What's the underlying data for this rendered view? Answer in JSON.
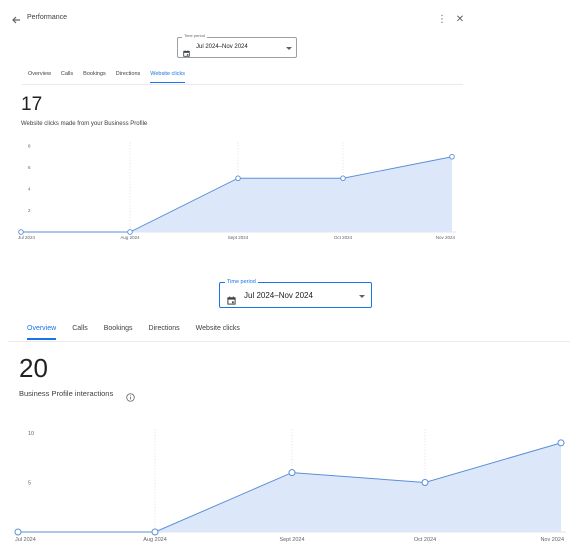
{
  "panel1": {
    "header": {
      "title": "Performance"
    },
    "time_period": {
      "label": "Time period",
      "value": "Jul 2024–Nov 2024"
    },
    "tabs": [
      {
        "label": "Overview",
        "active": false
      },
      {
        "label": "Calls",
        "active": false
      },
      {
        "label": "Bookings",
        "active": false
      },
      {
        "label": "Directions",
        "active": false
      },
      {
        "label": "Website clicks",
        "active": true
      }
    ],
    "metric": {
      "value": "17",
      "label": "Website clicks made from your Business Profile"
    }
  },
  "panel2": {
    "time_period": {
      "label": "Time period",
      "value": "Jul 2024–Nov 2024"
    },
    "tabs": [
      {
        "label": "Overview",
        "active": true
      },
      {
        "label": "Calls",
        "active": false
      },
      {
        "label": "Bookings",
        "active": false
      },
      {
        "label": "Directions",
        "active": false
      },
      {
        "label": "Website clicks",
        "active": false
      }
    ],
    "metric": {
      "value": "20",
      "label": "Business Profile interactions"
    }
  },
  "colors": {
    "accent": "#1a73e8",
    "line": "#5b8fd9",
    "fill": "#dce8f9",
    "grid": "#dadce0"
  },
  "icons": {
    "back": "arrow-left-icon",
    "more": "more-vert-icon",
    "close": "close-icon",
    "calendar": "calendar-icon",
    "info": "info-icon",
    "dropdown": "arrow-drop-down-icon"
  },
  "chart_data": [
    {
      "type": "area",
      "categories": [
        "Jul 2024",
        "Aug 2024",
        "Sept 2024",
        "Oct 2024",
        "Nov 2024"
      ],
      "series": [
        {
          "values": [
            0,
            0,
            5,
            5,
            7
          ]
        }
      ],
      "yticks": [
        "8",
        "6",
        "4",
        "2"
      ],
      "ylim": [
        0,
        8
      ],
      "grid": "vertical dashed"
    },
    {
      "type": "area",
      "categories": [
        "Jul 2024",
        "Aug 2024",
        "Sept 2024",
        "Oct 2024",
        "Nov 2024"
      ],
      "series": [
        {
          "values": [
            0,
            0,
            6,
            5,
            9
          ]
        }
      ],
      "yticks": [
        "10",
        "5"
      ],
      "ylim": [
        0,
        10
      ],
      "grid": "vertical dashed"
    }
  ]
}
